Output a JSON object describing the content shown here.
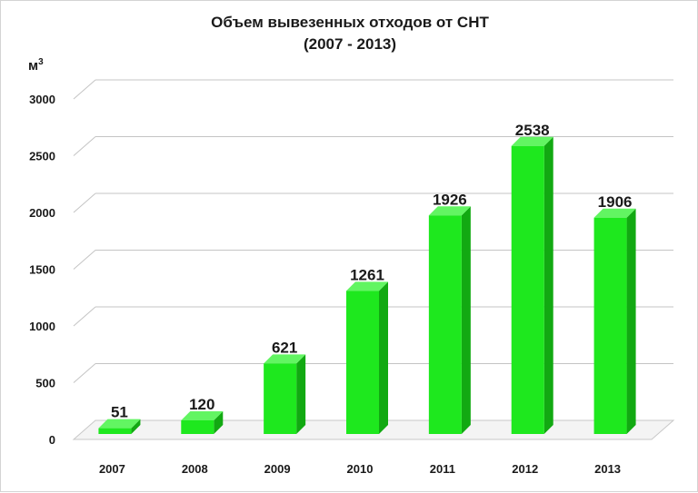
{
  "chart_data": {
    "type": "bar",
    "title_line1": "Объем вывезенных отходов от СНТ",
    "title_line2": "(2007 - 2013)",
    "ylabel_base": "м",
    "ylabel_sup": "3",
    "categories": [
      "2007",
      "2008",
      "2009",
      "2010",
      "2011",
      "2012",
      "2013"
    ],
    "values": [
      51,
      120,
      621,
      1261,
      1926,
      2538,
      1906
    ],
    "ylim": [
      0,
      3000
    ],
    "yticks": [
      0,
      500,
      1000,
      1500,
      2000,
      2500,
      3000
    ],
    "grid": true,
    "data_labels": true,
    "bar_color": "#1ee81e",
    "bar_side_color": "#12a912",
    "bar_top_color": "#62f562"
  }
}
